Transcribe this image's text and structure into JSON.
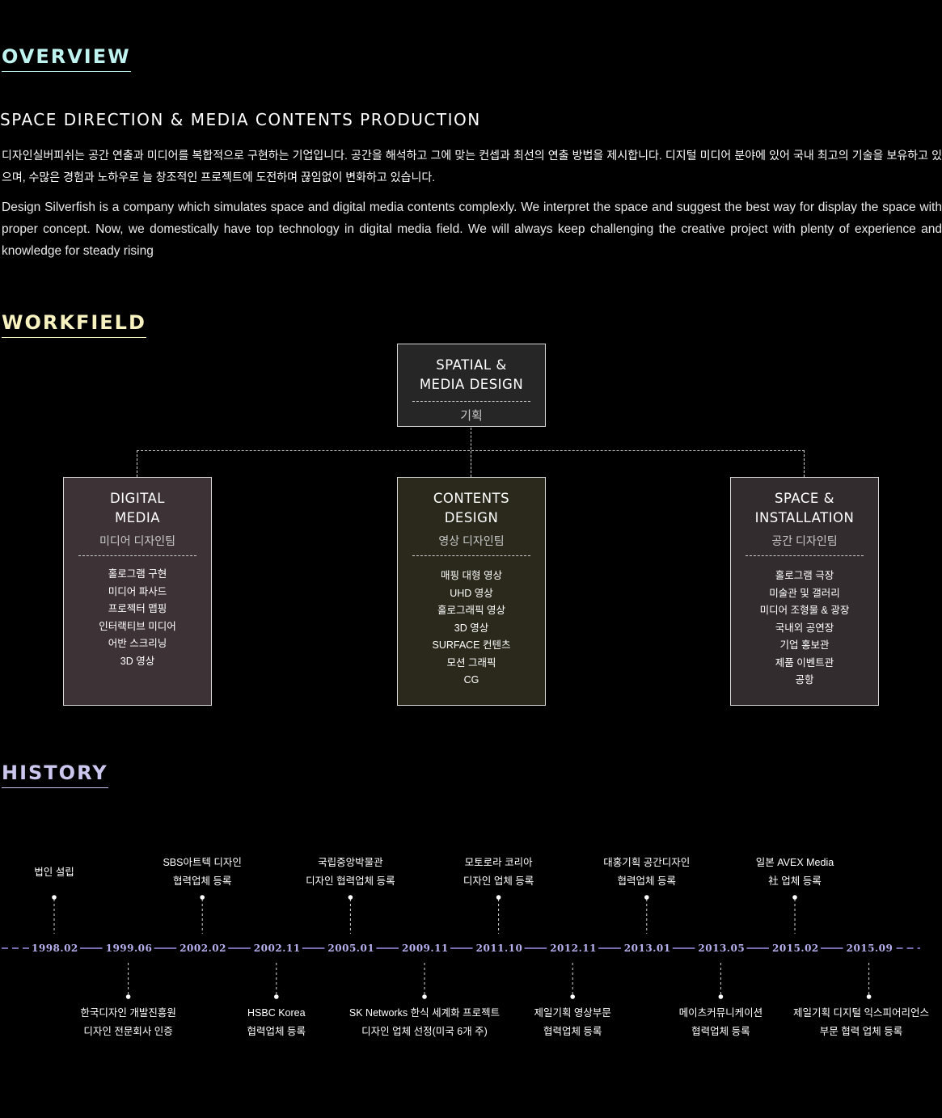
{
  "overview": {
    "title": "OVERVIEW",
    "subtitle": "SPACE DIRECTION & MEDIA CONTENTS PRODUCTION",
    "body_ko": "디자인실버피쉬는 공간 연출과 미디어를 복합적으로 구현하는 기업입니다. 공간을 해석하고 그에 맞는 컨셉과 최선의 연출 방법을 제시합니다. 디지털 미디어 분야에 있어 국내 최고의 기술을 보유하고 있으며, 수많은 경험과 노하우로 늘 창조적인 프로젝트에 도전하며 끊임없이 변화하고 있습니다.",
    "body_en": "Design Silverfish is a company which simulates space and digital media contents complexly. We interpret the space and suggest the best way for display the space with proper concept. Now, we domestically have top technology in digital media field. We will always keep challenging the creative project with plenty of experience and knowledge for steady rising"
  },
  "workfield": {
    "title": "WORKFIELD",
    "top": {
      "head": "SPATIAL &\nMEDIA DESIGN",
      "team": "기획"
    },
    "boxes": [
      {
        "head": "DIGITAL\nMEDIA",
        "team": "미디어 디자인팀",
        "items": [
          "홀로그램 구현",
          "미디어 파사드",
          "프로젝터 맵핑",
          "인터랙티브 미디어",
          "어반 스크리닝",
          "3D 영상"
        ]
      },
      {
        "head": "CONTENTS\nDESIGN",
        "team": "영상 디자인팀",
        "items": [
          "매핑 대형 영상",
          "UHD 영상",
          "홀로그래픽 영상",
          "3D 영상",
          "SURFACE 컨텐츠",
          "모션 그래픽",
          "CG"
        ]
      },
      {
        "head": "SPACE &\nINSTALLATION",
        "team": "공간 디자인팀",
        "items": [
          "홀로그램 극장",
          "미술관 및 갤러리",
          "미디어 조형물 & 광장",
          "국내외 공연장",
          "기업 홍보관",
          "제품 이벤트관",
          "공항"
        ]
      }
    ]
  },
  "history": {
    "title": "HISTORY",
    "events": [
      {
        "year": "1998.02",
        "label": "법인 설립",
        "side": "top"
      },
      {
        "year": "1999.06",
        "label": "한국디자인 개발진흥원\n디자인 전문회사 인증",
        "side": "bottom"
      },
      {
        "year": "2002.02",
        "label": "SBS아트텍 디자인\n협력업체 등록",
        "side": "top"
      },
      {
        "year": "2002.11",
        "label": "HSBC Korea\n협력업체 등록",
        "side": "bottom"
      },
      {
        "year": "2005.01",
        "label": "국립중앙박물관\n디자인 협력업체 등록",
        "side": "top"
      },
      {
        "year": "2009.11",
        "label": "SK Networks 한식 세계화 프로젝트\n디자인 업체 선정(미국 6개 주)",
        "side": "bottom"
      },
      {
        "year": "2011.10",
        "label": "모토로라 코리아\n디자인 업체 등록",
        "side": "top"
      },
      {
        "year": "2012.11",
        "label": "제일기획 영상부문\n협력업체 등록",
        "side": "bottom"
      },
      {
        "year": "2013.01",
        "label": "대홍기획 공간디자인\n협력업체 등록",
        "side": "top"
      },
      {
        "year": "2013.05",
        "label": "메이츠커뮤니케이션\n협력업체 등록",
        "side": "bottom"
      },
      {
        "year": "2015.02",
        "label": "일본 AVEX Media\n社 업체 등록",
        "side": "top"
      },
      {
        "year": "2015.09",
        "label": "제일기획 디지털 익스피어리언스\n부문 협력 업체 등록",
        "side": "bottom"
      }
    ]
  },
  "colors": {
    "overview": "#bff3ef",
    "workfield": "#f7f2c0",
    "history": "#cbc6ee",
    "timeline": "#9a90e6"
  }
}
